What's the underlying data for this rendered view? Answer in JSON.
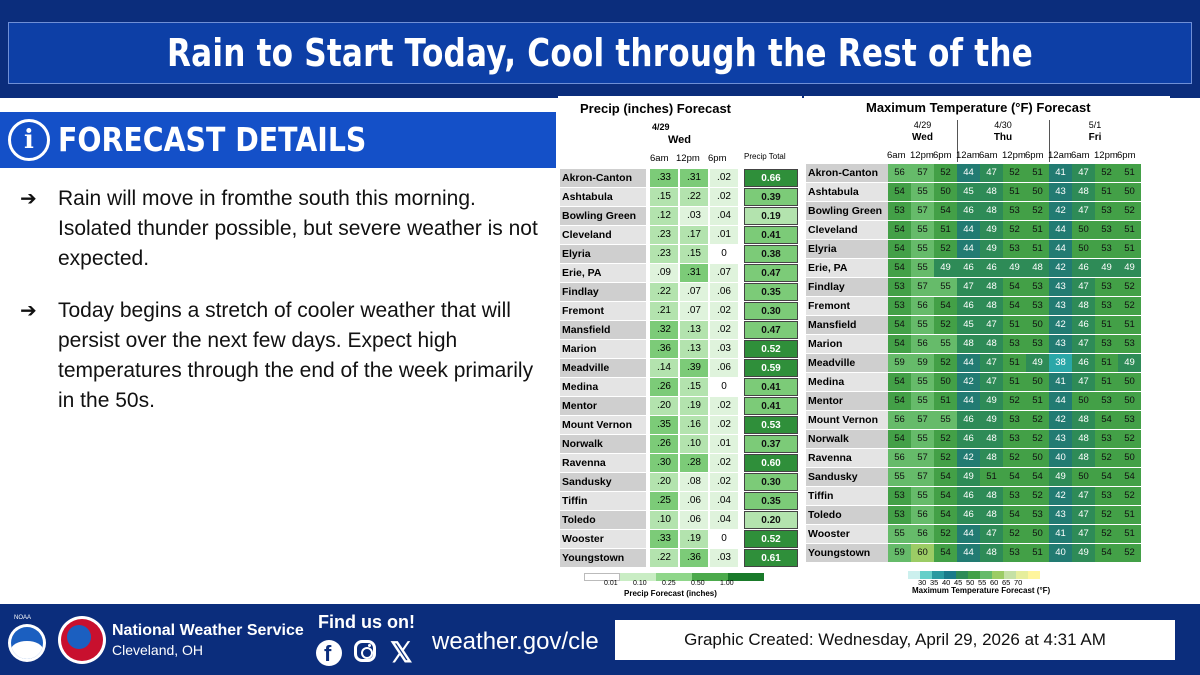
{
  "title": "Rain to Start Today, Cool through the Rest of the Week",
  "details": {
    "label": "FORECAST DETAILS",
    "icon": "info-icon",
    "bullets": [
      "Rain will move in fromthe south this morning. Isolated thunder possible, but severe weather is not expected.",
      "Today begins a stretch of cooler weather that will persist over the next few days. Expect high temperatures through the end of the week primarily in the 50s."
    ]
  },
  "precip": {
    "title": "Precip (inches) Forecast",
    "date": "4/29",
    "day": "Wed",
    "hours": [
      "6am",
      "12pm",
      "6pm"
    ],
    "total_header": "Precip Total",
    "rows": [
      {
        "city": "Akron-Canton",
        "v": [
          ".33",
          ".31",
          ".02"
        ],
        "total": "0.66"
      },
      {
        "city": "Ashtabula",
        "v": [
          ".15",
          ".22",
          ".02"
        ],
        "total": "0.39"
      },
      {
        "city": "Bowling Green",
        "v": [
          ".12",
          ".03",
          ".04"
        ],
        "total": "0.19"
      },
      {
        "city": "Cleveland",
        "v": [
          ".23",
          ".17",
          ".01"
        ],
        "total": "0.41"
      },
      {
        "city": "Elyria",
        "v": [
          ".23",
          ".15",
          "0"
        ],
        "total": "0.38"
      },
      {
        "city": "Erie, PA",
        "v": [
          ".09",
          ".31",
          ".07"
        ],
        "total": "0.47"
      },
      {
        "city": "Findlay",
        "v": [
          ".22",
          ".07",
          ".06"
        ],
        "total": "0.35"
      },
      {
        "city": "Fremont",
        "v": [
          ".21",
          ".07",
          ".02"
        ],
        "total": "0.30"
      },
      {
        "city": "Mansfield",
        "v": [
          ".32",
          ".13",
          ".02"
        ],
        "total": "0.47"
      },
      {
        "city": "Marion",
        "v": [
          ".36",
          ".13",
          ".03"
        ],
        "total": "0.52"
      },
      {
        "city": "Meadville",
        "v": [
          ".14",
          ".39",
          ".06"
        ],
        "total": "0.59"
      },
      {
        "city": "Medina",
        "v": [
          ".26",
          ".15",
          "0"
        ],
        "total": "0.41"
      },
      {
        "city": "Mentor",
        "v": [
          ".20",
          ".19",
          ".02"
        ],
        "total": "0.41"
      },
      {
        "city": "Mount Vernon",
        "v": [
          ".35",
          ".16",
          ".02"
        ],
        "total": "0.53"
      },
      {
        "city": "Norwalk",
        "v": [
          ".26",
          ".10",
          ".01"
        ],
        "total": "0.37"
      },
      {
        "city": "Ravenna",
        "v": [
          ".30",
          ".28",
          ".02"
        ],
        "total": "0.60"
      },
      {
        "city": "Sandusky",
        "v": [
          ".20",
          ".08",
          ".02"
        ],
        "total": "0.30"
      },
      {
        "city": "Tiffin",
        "v": [
          ".25",
          ".06",
          ".04"
        ],
        "total": "0.35"
      },
      {
        "city": "Toledo",
        "v": [
          ".10",
          ".06",
          ".04"
        ],
        "total": "0.20"
      },
      {
        "city": "Wooster",
        "v": [
          ".33",
          ".19",
          "0"
        ],
        "total": "0.52"
      },
      {
        "city": "Youngstown",
        "v": [
          ".22",
          ".36",
          ".03"
        ],
        "total": "0.61"
      }
    ],
    "legend_ticks": [
      "0.01",
      "0.10",
      "0.25",
      "0.50",
      "1.00"
    ],
    "legend_title": "Precip Forecast (inches)"
  },
  "temp": {
    "title": "Maximum Temperature (°F) Forecast",
    "days": [
      {
        "date": "4/29",
        "day": "Wed",
        "hours": [
          "6am",
          "12pm",
          "6pm"
        ]
      },
      {
        "date": "4/30",
        "day": "Thu",
        "hours": [
          "12am",
          "6am",
          "12pm",
          "6pm"
        ]
      },
      {
        "date": "5/1",
        "day": "Fri",
        "hours": [
          "12am",
          "6am",
          "12pm",
          "6pm"
        ]
      }
    ],
    "rows": [
      {
        "city": "Akron-Canton",
        "v": [
          56,
          57,
          52,
          44,
          47,
          52,
          51,
          41,
          47,
          52,
          51
        ]
      },
      {
        "city": "Ashtabula",
        "v": [
          54,
          55,
          50,
          45,
          48,
          51,
          50,
          43,
          48,
          51,
          50
        ]
      },
      {
        "city": "Bowling Green",
        "v": [
          53,
          57,
          54,
          46,
          48,
          53,
          52,
          42,
          47,
          53,
          52
        ]
      },
      {
        "city": "Cleveland",
        "v": [
          54,
          55,
          51,
          44,
          49,
          52,
          51,
          44,
          50,
          53,
          51
        ]
      },
      {
        "city": "Elyria",
        "v": [
          54,
          55,
          52,
          44,
          49,
          53,
          51,
          44,
          50,
          53,
          51
        ]
      },
      {
        "city": "Erie, PA",
        "v": [
          54,
          55,
          49,
          46,
          46,
          49,
          48,
          42,
          46,
          49,
          49
        ]
      },
      {
        "city": "Findlay",
        "v": [
          53,
          57,
          55,
          47,
          48,
          54,
          53,
          43,
          47,
          53,
          52
        ]
      },
      {
        "city": "Fremont",
        "v": [
          53,
          56,
          54,
          46,
          48,
          54,
          53,
          43,
          48,
          53,
          52
        ]
      },
      {
        "city": "Mansfield",
        "v": [
          54,
          55,
          52,
          45,
          47,
          51,
          50,
          42,
          46,
          51,
          51
        ]
      },
      {
        "city": "Marion",
        "v": [
          54,
          56,
          55,
          48,
          48,
          53,
          53,
          43,
          47,
          53,
          53
        ]
      },
      {
        "city": "Meadville",
        "v": [
          59,
          59,
          52,
          44,
          47,
          51,
          49,
          38,
          46,
          51,
          49
        ]
      },
      {
        "city": "Medina",
        "v": [
          54,
          55,
          50,
          42,
          47,
          51,
          50,
          41,
          47,
          51,
          50
        ]
      },
      {
        "city": "Mentor",
        "v": [
          54,
          55,
          51,
          44,
          49,
          52,
          51,
          44,
          50,
          53,
          50
        ]
      },
      {
        "city": "Mount Vernon",
        "v": [
          56,
          57,
          55,
          46,
          49,
          53,
          52,
          42,
          48,
          54,
          53
        ]
      },
      {
        "city": "Norwalk",
        "v": [
          54,
          55,
          52,
          46,
          48,
          53,
          52,
          43,
          48,
          53,
          52
        ]
      },
      {
        "city": "Ravenna",
        "v": [
          56,
          57,
          52,
          42,
          48,
          52,
          50,
          40,
          48,
          52,
          50
        ]
      },
      {
        "city": "Sandusky",
        "v": [
          55,
          57,
          54,
          49,
          51,
          54,
          54,
          49,
          50,
          54,
          54
        ]
      },
      {
        "city": "Tiffin",
        "v": [
          53,
          55,
          54,
          46,
          48,
          53,
          52,
          42,
          47,
          53,
          52
        ]
      },
      {
        "city": "Toledo",
        "v": [
          53,
          56,
          54,
          46,
          48,
          54,
          53,
          43,
          47,
          52,
          51
        ]
      },
      {
        "city": "Wooster",
        "v": [
          55,
          56,
          52,
          44,
          47,
          52,
          50,
          41,
          47,
          52,
          51
        ]
      },
      {
        "city": "Youngstown",
        "v": [
          59,
          60,
          54,
          44,
          48,
          53,
          51,
          40,
          49,
          54,
          52
        ]
      }
    ],
    "legend_ticks": [
      "30",
      "35",
      "40",
      "45",
      "50",
      "55",
      "60",
      "65",
      "70"
    ],
    "legend_title": "Maximum Temperature Forecast (°F)"
  },
  "footer": {
    "org": "National Weather Service",
    "office": "Cleveland, OH",
    "find_us": "Find us on!",
    "url": "weather.gov/cle",
    "created": "Graphic Created: Wednesday, April 29, 2026 at 4:31 AM",
    "noaa_label": "NOAA"
  },
  "colors": {
    "header_blue": "#0d3fa6",
    "band_blue": "#0b2d7c",
    "details_blue": "#1450c8"
  }
}
